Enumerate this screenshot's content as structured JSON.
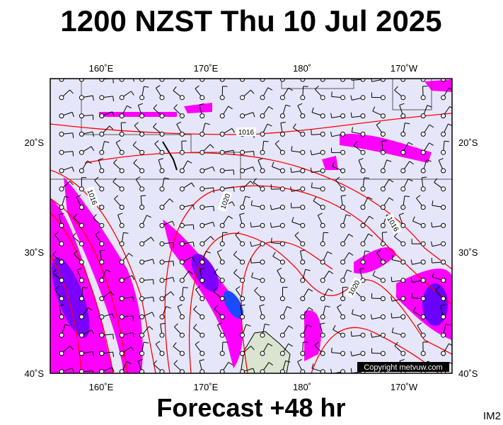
{
  "title": "1200 NZST Thu 10 Jul 2025",
  "footer": "Forecast +48 hr",
  "code": "IM2",
  "copyright": "Copyright metvuw.com",
  "map": {
    "lon_labels": [
      "160˚E",
      "170˚E",
      "180˚",
      "170˚W"
    ],
    "lat_labels": [
      "20˚S",
      "30˚S",
      "40˚S"
    ],
    "isobar_labels": [
      "1016",
      "1016",
      "1020",
      "1016",
      "1020"
    ]
  }
}
